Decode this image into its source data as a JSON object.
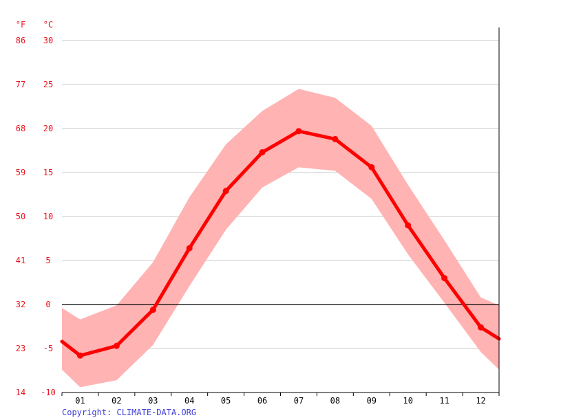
{
  "chart_data": {
    "type": "line",
    "y_unit_f": "°F",
    "y_unit_c": "°C",
    "ylim": [
      -10,
      30
    ],
    "y_ticks_c": [
      "30",
      "25",
      "20",
      "15",
      "10",
      "5",
      "0",
      "-5",
      "-10"
    ],
    "y_ticks_f": [
      "86",
      "77",
      "68",
      "59",
      "50",
      "41",
      "32",
      "23",
      "14"
    ],
    "categories": [
      "01",
      "02",
      "03",
      "04",
      "05",
      "06",
      "07",
      "08",
      "09",
      "10",
      "11",
      "12"
    ],
    "series": [
      {
        "values": [
          -5.8,
          -4.7,
          -0.6,
          6.4,
          12.9,
          17.3,
          19.7,
          18.8,
          15.6,
          9.0,
          3.0,
          -2.6
        ]
      }
    ],
    "range_min": [
      -9.4,
      -8.6,
      -4.6,
      2.1,
      8.5,
      13.3,
      15.6,
      15.2,
      12.0,
      5.7,
      0.2,
      -5.4
    ],
    "range_max": [
      -1.7,
      -0.1,
      4.8,
      12.2,
      18.2,
      22.0,
      24.5,
      23.5,
      20.3,
      13.6,
      7.3,
      0.8
    ],
    "edge_values": {
      "line": [
        -4.2,
        -3.9
      ],
      "min": [
        -7.4,
        -7.4
      ],
      "max": [
        -0.4,
        -0.1
      ]
    },
    "grid": true,
    "colors": {
      "line": "#ff0000",
      "band": "#ffb3b3",
      "axis_text": "#e8141e",
      "grid": "#c8c8c8",
      "zero_line": "#000000"
    }
  },
  "copyright": "Copyright: CLIMATE-DATA.ORG",
  "copyright_color": "#3b3bd9"
}
